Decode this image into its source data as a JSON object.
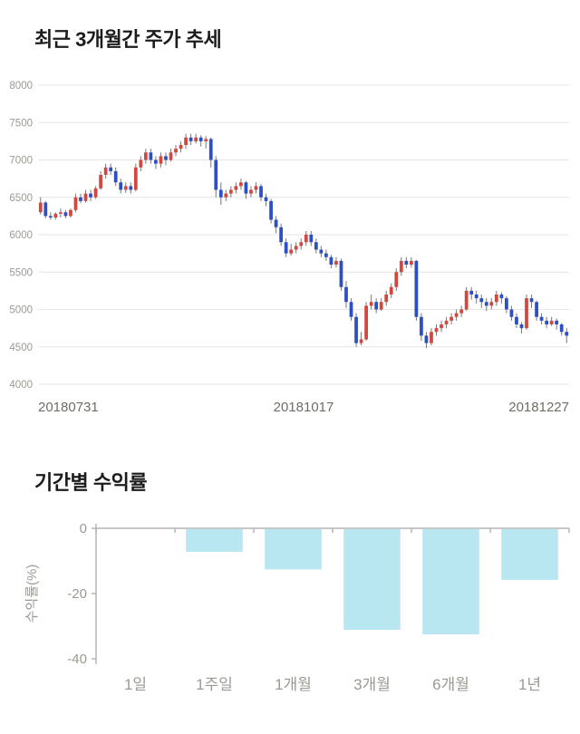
{
  "chart_data": [
    {
      "type": "candlestick",
      "title": "최근 3개월간 주가 추세",
      "x_labels": [
        "20180731",
        "20181017",
        "20181227"
      ],
      "y_ticks": [
        4000,
        4500,
        5000,
        5500,
        6000,
        6500,
        7000,
        7500,
        8000
      ],
      "ylim": [
        4000,
        8000
      ],
      "grid": true,
      "up_color": "#d2473e",
      "down_color": "#2d4fc4",
      "wick_color": "#787878",
      "grid_color": "#e6e6e6",
      "tick_label_color": "#9a9a94",
      "candles_ohlc": [
        [
          6300,
          6500,
          6270,
          6430
        ],
        [
          6430,
          6450,
          6220,
          6250
        ],
        [
          6250,
          6300,
          6200,
          6230
        ],
        [
          6230,
          6300,
          6200,
          6280
        ],
        [
          6280,
          6350,
          6230,
          6300
        ],
        [
          6300,
          6330,
          6220,
          6250
        ],
        [
          6250,
          6350,
          6230,
          6330
        ],
        [
          6330,
          6550,
          6300,
          6500
        ],
        [
          6500,
          6550,
          6420,
          6450
        ],
        [
          6450,
          6600,
          6430,
          6550
        ],
        [
          6550,
          6600,
          6450,
          6500
        ],
        [
          6500,
          6650,
          6480,
          6620
        ],
        [
          6620,
          6850,
          6600,
          6800
        ],
        [
          6800,
          6950,
          6750,
          6900
        ],
        [
          6900,
          6950,
          6800,
          6850
        ],
        [
          6850,
          6900,
          6650,
          6700
        ],
        [
          6700,
          6750,
          6550,
          6600
        ],
        [
          6600,
          6700,
          6560,
          6650
        ],
        [
          6650,
          6700,
          6550,
          6600
        ],
        [
          6600,
          6950,
          6580,
          6900
        ],
        [
          6900,
          7050,
          6850,
          7000
        ],
        [
          7000,
          7150,
          6950,
          7100
        ],
        [
          7100,
          7150,
          6950,
          7000
        ],
        [
          7000,
          7050,
          6880,
          6950
        ],
        [
          6950,
          7100,
          6900,
          7050
        ],
        [
          7050,
          7100,
          6930,
          7000
        ],
        [
          7000,
          7150,
          6980,
          7100
        ],
        [
          7100,
          7200,
          7050,
          7150
        ],
        [
          7150,
          7250,
          7100,
          7200
        ],
        [
          7200,
          7350,
          7150,
          7300
        ],
        [
          7300,
          7350,
          7200,
          7250
        ],
        [
          7250,
          7350,
          7220,
          7300
        ],
        [
          7300,
          7330,
          7180,
          7250
        ],
        [
          7250,
          7320,
          7150,
          7280
        ],
        [
          7280,
          7300,
          6900,
          7000
        ],
        [
          7000,
          7050,
          6500,
          6600
        ],
        [
          6600,
          6700,
          6400,
          6500
        ],
        [
          6500,
          6600,
          6450,
          6550
        ],
        [
          6550,
          6650,
          6500,
          6600
        ],
        [
          6600,
          6700,
          6550,
          6650
        ],
        [
          6650,
          6750,
          6600,
          6700
        ],
        [
          6700,
          6720,
          6480,
          6550
        ],
        [
          6550,
          6650,
          6500,
          6600
        ],
        [
          6600,
          6700,
          6550,
          6650
        ],
        [
          6650,
          6680,
          6450,
          6500
        ],
        [
          6500,
          6550,
          6380,
          6450
        ],
        [
          6450,
          6480,
          6150,
          6200
        ],
        [
          6200,
          6250,
          6020,
          6100
        ],
        [
          6100,
          6150,
          5850,
          5900
        ],
        [
          5900,
          5950,
          5700,
          5750
        ],
        [
          5750,
          5880,
          5720,
          5800
        ],
        [
          5800,
          5900,
          5750,
          5850
        ],
        [
          5850,
          5950,
          5800,
          5900
        ],
        [
          5900,
          6050,
          5850,
          6000
        ],
        [
          6000,
          6050,
          5850,
          5900
        ],
        [
          5900,
          5950,
          5750,
          5800
        ],
        [
          5800,
          5850,
          5700,
          5750
        ],
        [
          5750,
          5800,
          5650,
          5700
        ],
        [
          5700,
          5730,
          5550,
          5600
        ],
        [
          5600,
          5700,
          5560,
          5650
        ],
        [
          5650,
          5680,
          5250,
          5300
        ],
        [
          5300,
          5380,
          5020,
          5100
        ],
        [
          5100,
          5150,
          4850,
          4900
        ],
        [
          4900,
          4950,
          4500,
          4550
        ],
        [
          4550,
          4700,
          4520,
          4600
        ],
        [
          4600,
          5100,
          4580,
          5050
        ],
        [
          5050,
          5200,
          5000,
          5100
        ],
        [
          5100,
          5150,
          4950,
          5000
        ],
        [
          5000,
          5150,
          4980,
          5100
        ],
        [
          5100,
          5250,
          5050,
          5200
        ],
        [
          5200,
          5350,
          5150,
          5300
        ],
        [
          5300,
          5550,
          5250,
          5500
        ],
        [
          5500,
          5700,
          5450,
          5650
        ],
        [
          5650,
          5700,
          5550,
          5600
        ],
        [
          5600,
          5700,
          5560,
          5650
        ],
        [
          5650,
          5660,
          4850,
          4900
        ],
        [
          4900,
          4950,
          4580,
          4650
        ],
        [
          4650,
          4700,
          4480,
          4550
        ],
        [
          4550,
          4750,
          4520,
          4700
        ],
        [
          4700,
          4800,
          4650,
          4750
        ],
        [
          4750,
          4850,
          4700,
          4800
        ],
        [
          4800,
          4900,
          4750,
          4850
        ],
        [
          4850,
          4950,
          4800,
          4900
        ],
        [
          4900,
          5000,
          4850,
          4950
        ],
        [
          4950,
          5050,
          4900,
          5000
        ],
        [
          5000,
          5300,
          4980,
          5250
        ],
        [
          5250,
          5300,
          5130,
          5200
        ],
        [
          5200,
          5250,
          5080,
          5150
        ],
        [
          5150,
          5200,
          5020,
          5100
        ],
        [
          5100,
          5150,
          4980,
          5050
        ],
        [
          5050,
          5150,
          5000,
          5100
        ],
        [
          5100,
          5250,
          5050,
          5200
        ],
        [
          5200,
          5230,
          5080,
          5150
        ],
        [
          5150,
          5180,
          4950,
          5000
        ],
        [
          5000,
          5050,
          4850,
          4900
        ],
        [
          4900,
          4950,
          4750,
          4800
        ],
        [
          4800,
          4830,
          4680,
          4750
        ],
        [
          4750,
          5200,
          4730,
          5150
        ],
        [
          5150,
          5200,
          5020,
          5100
        ],
        [
          5100,
          5120,
          4850,
          4900
        ],
        [
          4900,
          4950,
          4800,
          4850
        ],
        [
          4850,
          4900,
          4750,
          4800
        ],
        [
          4800,
          4900,
          4780,
          4850
        ],
        [
          4850,
          4880,
          4730,
          4800
        ],
        [
          4800,
          4820,
          4650,
          4700
        ],
        [
          4700,
          4750,
          4550,
          4650
        ]
      ]
    },
    {
      "type": "bar",
      "title": "기간별 수익률",
      "ylabel": "수익률(%)",
      "categories": [
        "1일",
        "1주일",
        "1개월",
        "3개월",
        "6개월",
        "1년"
      ],
      "values": [
        0,
        -7.0,
        -12.4,
        -30.9,
        -32.3,
        -15.6
      ],
      "y_ticks": [
        0,
        -20,
        -40
      ],
      "ylim": [
        -40,
        0
      ],
      "grid": false,
      "legend": "none",
      "bar_color": "#b9e7f1",
      "axis_color": "#b5b5b5",
      "tick_label_color": "#9a9a94",
      "ylabel_color": "#9a9a94"
    }
  ]
}
